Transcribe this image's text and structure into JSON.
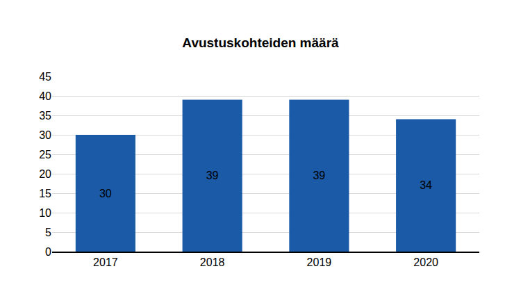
{
  "chart_data": {
    "type": "bar",
    "title": "Avustuskohteiden määrä",
    "categories": [
      "2017",
      "2018",
      "2019",
      "2020"
    ],
    "values": [
      30,
      39,
      39,
      34
    ],
    "color": "#1a5aa6",
    "ylim": [
      0,
      45
    ],
    "yticks": [
      0,
      5,
      10,
      15,
      20,
      25,
      30,
      35,
      40,
      45
    ],
    "grid": true,
    "data_labels": true
  }
}
